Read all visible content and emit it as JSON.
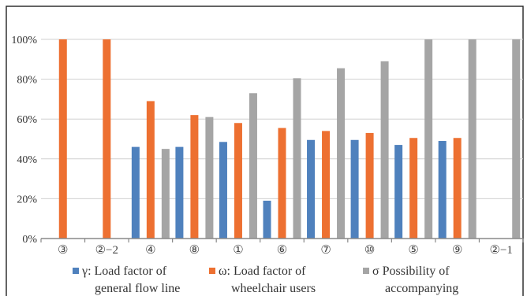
{
  "chart_data": {
    "type": "bar",
    "title": "",
    "xlabel": "",
    "ylabel": "",
    "ylim": [
      0,
      100
    ],
    "y_tick_values": [
      0,
      20,
      40,
      60,
      80,
      100
    ],
    "y_tick_labels": [
      "0%",
      "20%",
      "40%",
      "60%",
      "80%",
      "100%"
    ],
    "grid": "horizontal",
    "legend_position": "bottom",
    "categories": [
      "③",
      "②−2",
      "④",
      "⑧",
      "①",
      "⑥",
      "⑦",
      "⑩",
      "⑤",
      "⑨",
      "②−1"
    ],
    "series": [
      {
        "name": "γ: Load factor of general flow line",
        "legend_lines": [
          "γ: Load factor of",
          "general flow line"
        ],
        "color": "#4f81bd",
        "values": [
          null,
          null,
          46,
          46,
          48.5,
          19,
          49.5,
          49.5,
          47,
          49,
          null
        ]
      },
      {
        "name": "ω: Load factor of wheelchair users",
        "legend_lines": [
          "ω: Load factor of",
          "wheelchair users"
        ],
        "color": "#ed7031",
        "values": [
          100,
          100,
          69,
          62,
          58,
          55.5,
          54,
          53,
          50.5,
          50.5,
          null
        ]
      },
      {
        "name": "σ Possibility of accompanying",
        "legend_lines": [
          "σ Possibility of",
          "accompanying"
        ],
        "color": "#a5a5a5",
        "values": [
          null,
          null,
          45,
          61,
          73,
          80.5,
          85.5,
          89,
          100,
          100,
          100
        ]
      }
    ]
  }
}
